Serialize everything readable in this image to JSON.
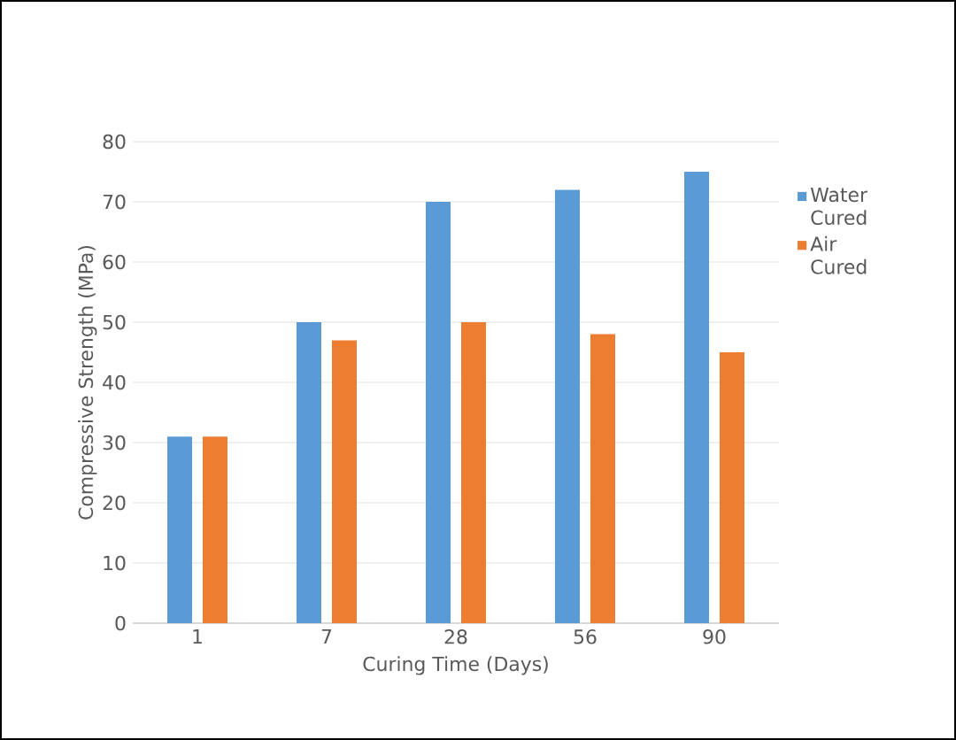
{
  "chart_data": {
    "type": "bar",
    "xlabel": "Curing Time (Days)",
    "ylabel": "Compressive Strength (MPa)",
    "categories": [
      "1",
      "7",
      "28",
      "56",
      "90"
    ],
    "series": [
      {
        "name": "Water Cured",
        "color": "#5b9bd5",
        "values": [
          31,
          50,
          70,
          72,
          75
        ]
      },
      {
        "name": "Air Cured",
        "color": "#ed7d31",
        "values": [
          31,
          47,
          50,
          48,
          45
        ]
      }
    ],
    "ylim": [
      0,
      80
    ],
    "yticks": [
      0,
      10,
      20,
      30,
      40,
      50,
      60,
      70,
      80
    ],
    "grid": "y",
    "legend": "right"
  }
}
